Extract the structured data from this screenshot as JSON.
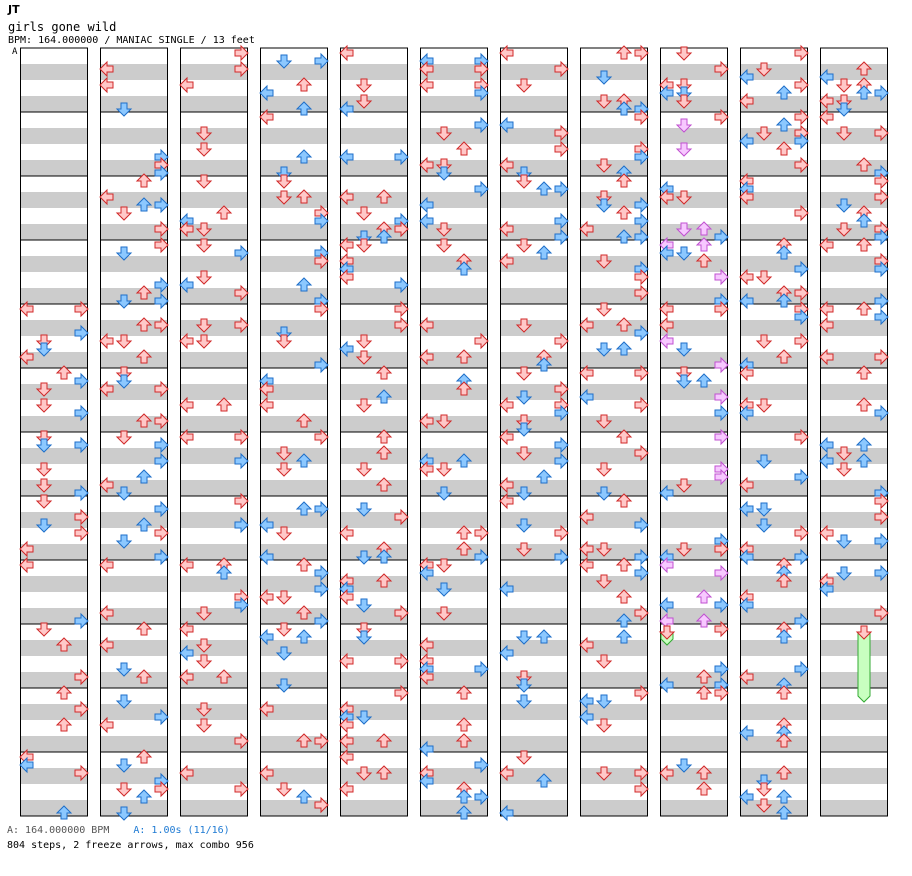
{
  "header": {
    "artist": "JT",
    "title": "girls gone wild",
    "meta": "BPM: 164.000000 / MANIAC SINGLE / 13 feet",
    "marker": "A"
  },
  "footer": {
    "bpm_line": "A: 164.000000 BPM",
    "stop_line": "A: 1.00s (11/16)",
    "stats": "804 steps, 2 freeze arrows, max combo 956"
  },
  "colors": {
    "red_fill": "#ffc8c8",
    "red_stroke": "#d02828",
    "blue_fill": "#8cc8ff",
    "blue_stroke": "#1e6ec8",
    "pink_fill": "#f7c8ff",
    "pink_stroke": "#c050d0",
    "band": "#cccccc",
    "freeze_fill": "#c8ffc0",
    "freeze_stroke": "#33aa33"
  },
  "chart": {
    "columns": 11,
    "measures_per_column": 12,
    "seed": 164
  }
}
